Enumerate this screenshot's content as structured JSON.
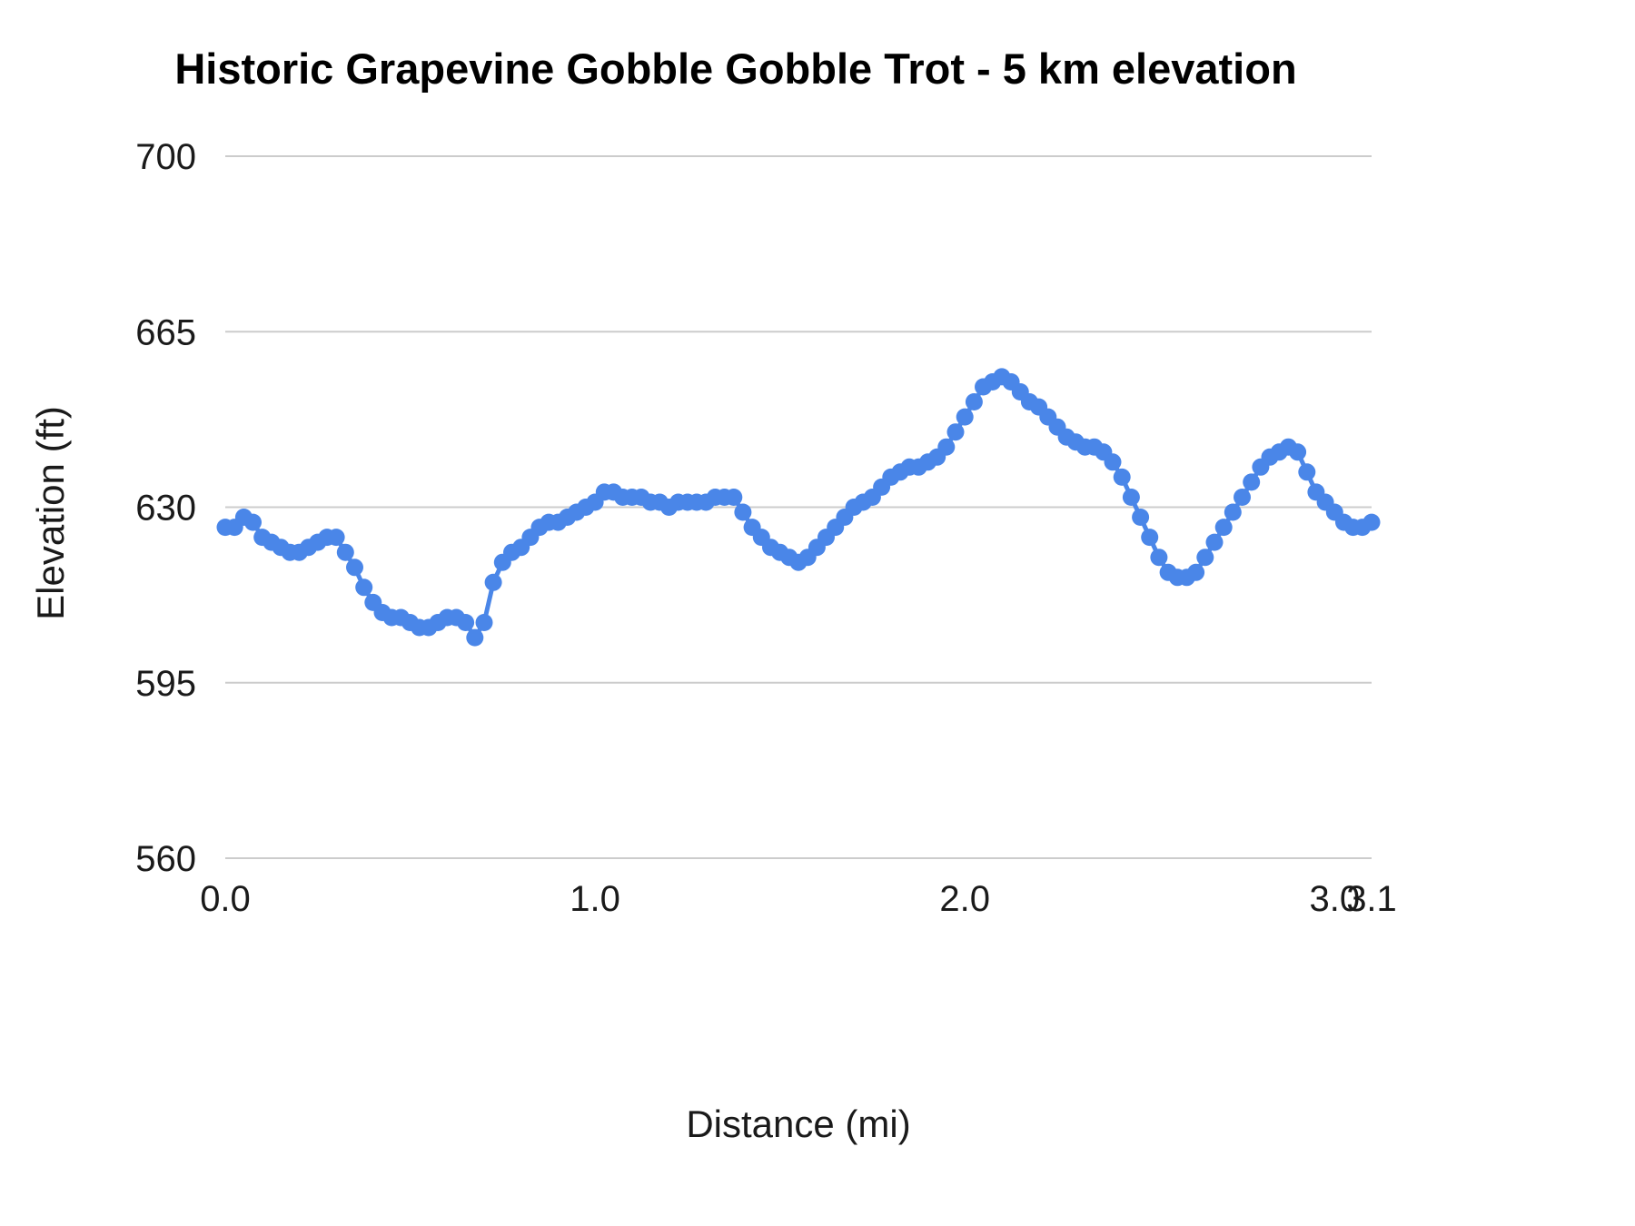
{
  "chart_data": {
    "type": "line",
    "title": "Historic Grapevine Gobble Gobble Trot - 5 km elevation",
    "xlabel": "Distance (mi)",
    "ylabel": "Elevation (ft)",
    "xlim": [
      0,
      3.1
    ],
    "ylim": [
      560,
      700
    ],
    "grid": "horizontal",
    "legend": "none",
    "series_name": "Elevation",
    "colors": {
      "series": "#4a86e8",
      "gridline": "#cccccc",
      "text": "#1a1a1a"
    },
    "xticks": [
      {
        "label": "0.0",
        "value": 0.0
      },
      {
        "label": "1.0",
        "value": 1.0
      },
      {
        "label": "2.0",
        "value": 2.0
      },
      {
        "label": "3.0",
        "value": 3.0
      },
      {
        "label": "3.1",
        "value": 3.1
      }
    ],
    "yticks": [
      {
        "label": "560",
        "value": 560
      },
      {
        "label": "595",
        "value": 595
      },
      {
        "label": "630",
        "value": 630
      },
      {
        "label": "665",
        "value": 665
      },
      {
        "label": "700",
        "value": 700
      }
    ],
    "points": [
      [
        0.0,
        626
      ],
      [
        0.025,
        626
      ],
      [
        0.05,
        628
      ],
      [
        0.075,
        627
      ],
      [
        0.1,
        624
      ],
      [
        0.125,
        623
      ],
      [
        0.15,
        622
      ],
      [
        0.175,
        621
      ],
      [
        0.2,
        621
      ],
      [
        0.225,
        622
      ],
      [
        0.25,
        623
      ],
      [
        0.275,
        624
      ],
      [
        0.3,
        624
      ],
      [
        0.325,
        621
      ],
      [
        0.35,
        618
      ],
      [
        0.375,
        614
      ],
      [
        0.4,
        611
      ],
      [
        0.425,
        609
      ],
      [
        0.45,
        608
      ],
      [
        0.475,
        608
      ],
      [
        0.5,
        607
      ],
      [
        0.525,
        606
      ],
      [
        0.55,
        606
      ],
      [
        0.575,
        607
      ],
      [
        0.6,
        608
      ],
      [
        0.625,
        608
      ],
      [
        0.65,
        607
      ],
      [
        0.675,
        604
      ],
      [
        0.7,
        607
      ],
      [
        0.725,
        615
      ],
      [
        0.75,
        619
      ],
      [
        0.775,
        621
      ],
      [
        0.8,
        622
      ],
      [
        0.825,
        624
      ],
      [
        0.85,
        626
      ],
      [
        0.875,
        627
      ],
      [
        0.9,
        627
      ],
      [
        0.925,
        628
      ],
      [
        0.95,
        629
      ],
      [
        0.975,
        630
      ],
      [
        1.0,
        631
      ],
      [
        1.025,
        633
      ],
      [
        1.05,
        633
      ],
      [
        1.075,
        632
      ],
      [
        1.1,
        632
      ],
      [
        1.125,
        632
      ],
      [
        1.15,
        631
      ],
      [
        1.175,
        631
      ],
      [
        1.2,
        630
      ],
      [
        1.225,
        631
      ],
      [
        1.25,
        631
      ],
      [
        1.275,
        631
      ],
      [
        1.3,
        631
      ],
      [
        1.325,
        632
      ],
      [
        1.35,
        632
      ],
      [
        1.375,
        632
      ],
      [
        1.4,
        629
      ],
      [
        1.425,
        626
      ],
      [
        1.45,
        624
      ],
      [
        1.475,
        622
      ],
      [
        1.5,
        621
      ],
      [
        1.525,
        620
      ],
      [
        1.55,
        619
      ],
      [
        1.575,
        620
      ],
      [
        1.6,
        622
      ],
      [
        1.625,
        624
      ],
      [
        1.65,
        626
      ],
      [
        1.675,
        628
      ],
      [
        1.7,
        630
      ],
      [
        1.725,
        631
      ],
      [
        1.75,
        632
      ],
      [
        1.775,
        634
      ],
      [
        1.8,
        636
      ],
      [
        1.825,
        637
      ],
      [
        1.85,
        638
      ],
      [
        1.875,
        638
      ],
      [
        1.9,
        639
      ],
      [
        1.925,
        640
      ],
      [
        1.95,
        642
      ],
      [
        1.975,
        645
      ],
      [
        2.0,
        648
      ],
      [
        2.025,
        651
      ],
      [
        2.05,
        654
      ],
      [
        2.075,
        655
      ],
      [
        2.1,
        656
      ],
      [
        2.125,
        655
      ],
      [
        2.15,
        653
      ],
      [
        2.175,
        651
      ],
      [
        2.2,
        650
      ],
      [
        2.225,
        648
      ],
      [
        2.25,
        646
      ],
      [
        2.275,
        644
      ],
      [
        2.3,
        643
      ],
      [
        2.325,
        642
      ],
      [
        2.35,
        642
      ],
      [
        2.375,
        641
      ],
      [
        2.4,
        639
      ],
      [
        2.425,
        636
      ],
      [
        2.45,
        632
      ],
      [
        2.475,
        628
      ],
      [
        2.5,
        624
      ],
      [
        2.525,
        620
      ],
      [
        2.55,
        617
      ],
      [
        2.575,
        616
      ],
      [
        2.6,
        616
      ],
      [
        2.625,
        617
      ],
      [
        2.65,
        620
      ],
      [
        2.675,
        623
      ],
      [
        2.7,
        626
      ],
      [
        2.725,
        629
      ],
      [
        2.75,
        632
      ],
      [
        2.775,
        635
      ],
      [
        2.8,
        638
      ],
      [
        2.825,
        640
      ],
      [
        2.85,
        641
      ],
      [
        2.875,
        642
      ],
      [
        2.9,
        641
      ],
      [
        2.925,
        637
      ],
      [
        2.95,
        633
      ],
      [
        2.975,
        631
      ],
      [
        3.0,
        629
      ],
      [
        3.025,
        627
      ],
      [
        3.05,
        626
      ],
      [
        3.075,
        626
      ],
      [
        3.1,
        627
      ]
    ]
  }
}
